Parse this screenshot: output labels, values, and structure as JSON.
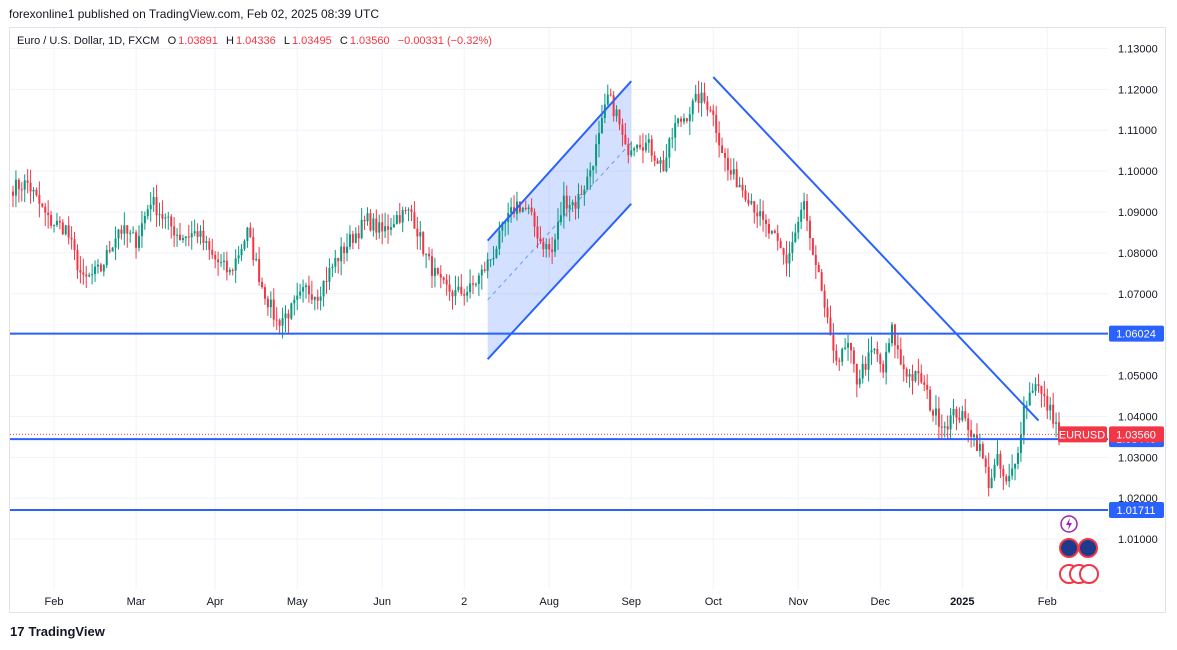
{
  "header": {
    "published_text": "forexonline1 published on TradingView.com, Feb 02, 2025 08:39 UTC"
  },
  "symbol": {
    "name": "Euro / U.S. Dollar, 1D, FXCM",
    "open_label": "O",
    "open": "1.03891",
    "high_label": "H",
    "high": "1.04336",
    "low_label": "L",
    "low": "1.03495",
    "close_label": "C",
    "close": "1.03560",
    "change": "−0.00331 (−0.32%)"
  },
  "footer": {
    "brand": "TradingView",
    "logo_glyph": "17"
  },
  "colors": {
    "up": "#089981",
    "down": "#f23645",
    "drawing": "#2962ff",
    "channel_fill": "#2962ff",
    "grid": "#f0f3fa",
    "axis_text": "#131722",
    "label_bg": "#2962ff",
    "price_bg": "#f23645"
  },
  "chart_data": {
    "type": "candlestick",
    "instrument": "EURUSD",
    "timeframe": "1D",
    "ylim": [
      1.0,
      1.135
    ],
    "y_ticks": [
      "1.13000",
      "1.12000",
      "1.11000",
      "1.10000",
      "1.09000",
      "1.08000",
      "1.07000",
      "1.06000",
      "1.05000",
      "1.04000",
      "1.03000",
      "1.02000",
      "1.01000"
    ],
    "x_ticks": [
      {
        "label": "Feb",
        "day": 14
      },
      {
        "label": "Mar",
        "day": 42
      },
      {
        "label": "Apr",
        "day": 69
      },
      {
        "label": "May",
        "day": 97
      },
      {
        "label": "Jun",
        "day": 126
      },
      {
        "label": "2",
        "day": 154
      },
      {
        "label": "Aug",
        "day": 183
      },
      {
        "label": "Sep",
        "day": 211
      },
      {
        "label": "Oct",
        "day": 239
      },
      {
        "label": "Nov",
        "day": 268
      },
      {
        "label": "Dec",
        "day": 296
      },
      {
        "label": "2025",
        "day": 324
      },
      {
        "label": "Feb",
        "day": 353
      }
    ],
    "waypoints": [
      [
        0,
        1.096
      ],
      [
        5,
        1.097
      ],
      [
        12,
        1.088
      ],
      [
        18,
        1.086
      ],
      [
        24,
        1.073
      ],
      [
        30,
        1.076
      ],
      [
        36,
        1.086
      ],
      [
        42,
        1.083
      ],
      [
        47,
        1.093
      ],
      [
        52,
        1.088
      ],
      [
        57,
        1.084
      ],
      [
        63,
        1.085
      ],
      [
        68,
        1.079
      ],
      [
        74,
        1.075
      ],
      [
        80,
        1.085
      ],
      [
        85,
        1.072
      ],
      [
        90,
        1.063
      ],
      [
        95,
        1.066
      ],
      [
        100,
        1.071
      ],
      [
        104,
        1.07
      ],
      [
        110,
        1.078
      ],
      [
        116,
        1.084
      ],
      [
        121,
        1.088
      ],
      [
        126,
        1.085
      ],
      [
        131,
        1.089
      ],
      [
        136,
        1.09
      ],
      [
        141,
        1.079
      ],
      [
        146,
        1.072
      ],
      [
        151,
        1.07
      ],
      [
        156,
        1.071
      ],
      [
        160,
        1.075
      ],
      [
        164,
        1.08
      ],
      [
        168,
        1.087
      ],
      [
        172,
        1.092
      ],
      [
        176,
        1.09
      ],
      [
        180,
        1.083
      ],
      [
        184,
        1.08
      ],
      [
        188,
        1.093
      ],
      [
        192,
        1.092
      ],
      [
        196,
        1.098
      ],
      [
        200,
        1.108
      ],
      [
        203,
        1.118
      ],
      [
        206,
        1.114
      ],
      [
        209,
        1.105
      ],
      [
        213,
        1.108
      ],
      [
        217,
        1.106
      ],
      [
        222,
        1.101
      ],
      [
        226,
        1.111
      ],
      [
        230,
        1.114
      ],
      [
        234,
        1.118
      ],
      [
        238,
        1.116
      ],
      [
        241,
        1.108
      ],
      [
        244,
        1.1
      ],
      [
        248,
        1.097
      ],
      [
        252,
        1.093
      ],
      [
        256,
        1.087
      ],
      [
        260,
        1.083
      ],
      [
        264,
        1.078
      ],
      [
        267,
        1.085
      ],
      [
        270,
        1.092
      ],
      [
        273,
        1.078
      ],
      [
        276,
        1.071
      ],
      [
        279,
        1.058
      ],
      [
        282,
        1.054
      ],
      [
        285,
        1.057
      ],
      [
        288,
        1.049
      ],
      [
        291,
        1.053
      ],
      [
        294,
        1.056
      ],
      [
        297,
        1.051
      ],
      [
        300,
        1.061
      ],
      [
        303,
        1.053
      ],
      [
        306,
        1.05
      ],
      [
        310,
        1.049
      ],
      [
        314,
        1.041
      ],
      [
        318,
        1.038
      ],
      [
        322,
        1.041
      ],
      [
        326,
        1.038
      ],
      [
        330,
        1.032
      ],
      [
        333,
        1.024
      ],
      [
        336,
        1.029
      ],
      [
        339,
        1.023
      ],
      [
        342,
        1.028
      ],
      [
        345,
        1.042
      ],
      [
        349,
        1.049
      ],
      [
        351,
        1.045
      ],
      [
        355,
        1.04
      ],
      [
        357,
        1.0356
      ]
    ],
    "close": 1.0356,
    "drawings": {
      "channel_upper": [
        [
          162,
          1.083
        ],
        [
          211,
          1.122
        ]
      ],
      "channel_lower": [
        [
          162,
          1.054
        ],
        [
          211,
          1.092
        ]
      ],
      "downtrend_line": [
        [
          239,
          1.123
        ],
        [
          350,
          1.039
        ]
      ],
      "horizontal_levels": [
        1.06024,
        1.03446,
        1.01711
      ]
    },
    "price_labels": [
      {
        "text": "1.06024",
        "value": 1.06024
      },
      {
        "text": "1.03446",
        "value": 1.03446
      },
      {
        "text": "1.01711",
        "value": 1.01711
      }
    ],
    "current_price": {
      "symbol": "EURUSD",
      "text": "1.03560",
      "value": 1.0356
    }
  }
}
